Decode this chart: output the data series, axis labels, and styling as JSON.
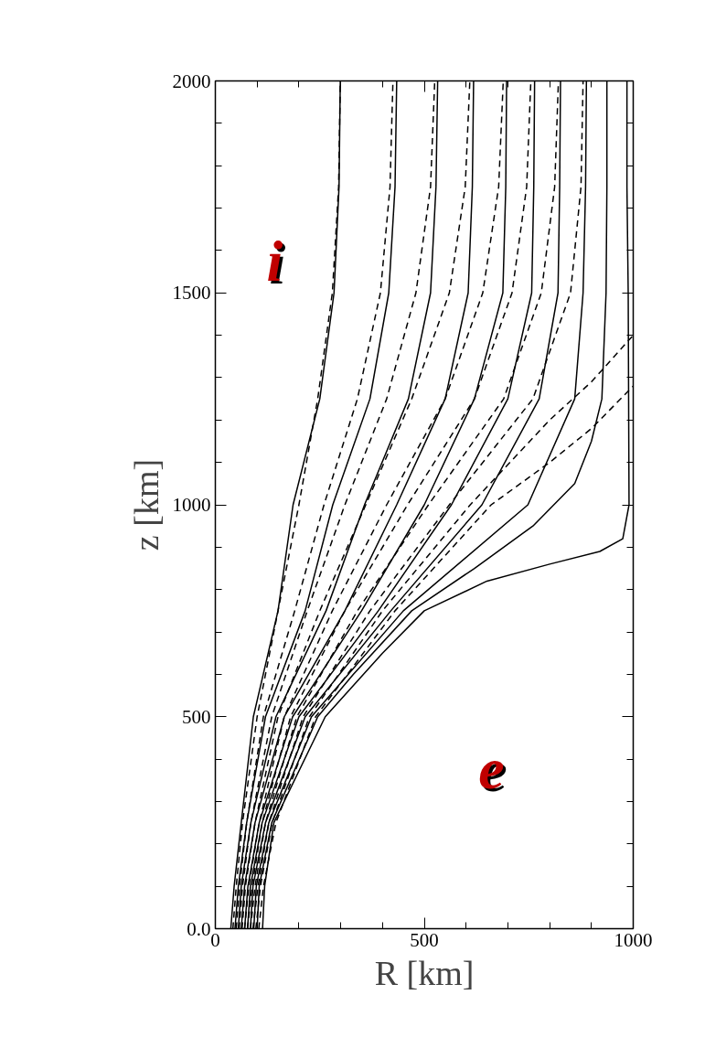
{
  "chart_data": {
    "type": "line",
    "xlabel": "R [km]",
    "ylabel": "z [km]",
    "xlim": [
      0,
      1000
    ],
    "ylim": [
      0,
      2000
    ],
    "xticks": [
      0,
      {
        "value": 100,
        "label": null
      },
      {
        "value": 200,
        "label": null
      },
      {
        "value": 300,
        "label": null
      },
      {
        "value": 400,
        "label": null
      },
      500,
      {
        "value": 600,
        "label": null
      },
      {
        "value": 700,
        "label": null
      },
      {
        "value": 800,
        "label": null
      },
      {
        "value": 900,
        "label": null
      },
      1000
    ],
    "yticks": [
      {
        "value": 0,
        "label": "0.0"
      },
      {
        "value": 100,
        "label": null
      },
      {
        "value": 200,
        "label": null
      },
      {
        "value": 300,
        "label": null
      },
      {
        "value": 400,
        "label": null
      },
      500,
      {
        "value": 600,
        "label": null
      },
      {
        "value": 700,
        "label": null
      },
      {
        "value": 800,
        "label": null
      },
      {
        "value": 900,
        "label": null
      },
      1000,
      {
        "value": 1100,
        "label": null
      },
      {
        "value": 1200,
        "label": null
      },
      {
        "value": 1300,
        "label": null
      },
      {
        "value": 1400,
        "label": null
      },
      1500,
      {
        "value": 1600,
        "label": null
      },
      {
        "value": 1700,
        "label": null
      },
      {
        "value": 1800,
        "label": null
      },
      {
        "value": 1900,
        "label": null
      },
      2000
    ],
    "annotations": [
      "i",
      "e"
    ],
    "series": [
      {
        "color": "#000000",
        "line_style": "solid",
        "x": [
          37,
          45,
          62,
          91,
          150,
          186,
          250,
          284,
          296,
          299
        ],
        "values": [
          0,
          100,
          250,
          500,
          750,
          1000,
          1250,
          1500,
          1750,
          2000
        ]
      },
      {
        "color": "#000000",
        "line_style": "solid",
        "x": [
          47,
          55,
          75,
          120,
          215,
          281,
          370,
          415,
          430,
          434
        ],
        "values": [
          0,
          100,
          250,
          500,
          750,
          1000,
          1250,
          1500,
          1750,
          2000
        ]
      },
      {
        "color": "#000000",
        "line_style": "solid",
        "x": [
          55,
          62,
          85,
          145,
          265,
          357,
          462,
          515,
          528,
          532
        ],
        "values": [
          0,
          100,
          250,
          500,
          750,
          1000,
          1250,
          1500,
          1750,
          2000
        ]
      },
      {
        "color": "#000000",
        "line_style": "solid",
        "x": [
          62,
          70,
          95,
          165,
          310,
          434,
          550,
          605,
          615,
          618
        ],
        "values": [
          0,
          100,
          250,
          500,
          750,
          1000,
          1250,
          1500,
          1750,
          2000
        ]
      },
      {
        "color": "#000000",
        "line_style": "solid",
        "x": [
          70,
          78,
          105,
          185,
          350,
          500,
          620,
          688,
          695,
          697
        ],
        "values": [
          0,
          100,
          250,
          500,
          750,
          1000,
          1250,
          1500,
          1750,
          2000
        ]
      },
      {
        "color": "#000000",
        "line_style": "solid",
        "x": [
          77,
          84,
          112,
          200,
          390,
          565,
          700,
          757,
          762,
          764
        ],
        "values": [
          0,
          100,
          250,
          500,
          750,
          1000,
          1250,
          1500,
          1750,
          2000
        ]
      },
      {
        "color": "#000000",
        "line_style": "solid",
        "x": [
          84,
          90,
          120,
          215,
          420,
          638,
          775,
          820,
          824,
          826
        ],
        "values": [
          0,
          100,
          250,
          500,
          750,
          1000,
          1250,
          1500,
          1750,
          2000
        ]
      },
      {
        "color": "#000000",
        "line_style": "solid",
        "x": [
          92,
          98,
          128,
          230,
          450,
          748,
          860,
          880,
          886,
          888
        ],
        "values": [
          0,
          100,
          250,
          500,
          750,
          1000,
          1250,
          1500,
          1750,
          2000
        ]
      },
      {
        "color": "#000000",
        "line_style": "solid",
        "x": [
          100,
          105,
          135,
          245,
          330,
          470,
          620,
          760,
          860,
          900,
          925,
          935,
          937,
          937
        ],
        "values": [
          0,
          100,
          250,
          500,
          600,
          750,
          850,
          950,
          1050,
          1150,
          1250,
          1500,
          1750,
          2000
        ]
      },
      {
        "color": "#000000",
        "line_style": "solid",
        "x": [
          113,
          118,
          140,
          263,
          400,
          500,
          650,
          800,
          920,
          975,
          990,
          988,
          985,
          985
        ],
        "values": [
          0,
          100,
          250,
          500,
          650,
          750,
          820,
          860,
          890,
          920,
          1000,
          1500,
          1750,
          2000
        ]
      },
      {
        "color": "#000000",
        "line_style": "dashed",
        "x": [
          42,
          50,
          65,
          100,
          150,
          200,
          245,
          280,
          295,
          299
        ],
        "values": [
          0,
          100,
          250,
          500,
          750,
          1000,
          1250,
          1500,
          1750,
          2000
        ]
      },
      {
        "color": "#000000",
        "line_style": "dashed",
        "x": [
          50,
          58,
          75,
          115,
          190,
          260,
          340,
          395,
          418,
          425
        ],
        "values": [
          0,
          100,
          250,
          500,
          750,
          1000,
          1250,
          1500,
          1750,
          2000
        ]
      },
      {
        "color": "#000000",
        "line_style": "dashed",
        "x": [
          57,
          65,
          85,
          135,
          220,
          310,
          410,
          480,
          515,
          525
        ],
        "values": [
          0,
          100,
          250,
          500,
          750,
          1000,
          1250,
          1500,
          1750,
          2000
        ]
      },
      {
        "color": "#000000",
        "line_style": "dashed",
        "x": [
          64,
          72,
          95,
          150,
          250,
          360,
          470,
          560,
          598,
          609
        ],
        "values": [
          0,
          100,
          250,
          500,
          750,
          1000,
          1250,
          1500,
          1750,
          2000
        ]
      },
      {
        "color": "#000000",
        "line_style": "dashed",
        "x": [
          70,
          80,
          105,
          165,
          280,
          410,
          550,
          640,
          678,
          689
        ],
        "values": [
          0,
          100,
          250,
          500,
          750,
          1000,
          1250,
          1500,
          1750,
          2000
        ]
      },
      {
        "color": "#000000",
        "line_style": "dashed",
        "x": [
          77,
          88,
          112,
          180,
          310,
          460,
          620,
          710,
          745,
          755
        ],
        "values": [
          0,
          100,
          250,
          500,
          750,
          1000,
          1250,
          1500,
          1750,
          2000
        ]
      },
      {
        "color": "#000000",
        "line_style": "dashed",
        "x": [
          84,
          95,
          120,
          195,
          340,
          510,
          690,
          780,
          812,
          821
        ],
        "values": [
          0,
          100,
          250,
          500,
          750,
          1000,
          1250,
          1500,
          1750,
          2000
        ]
      },
      {
        "color": "#000000",
        "line_style": "dashed",
        "x": [
          90,
          102,
          128,
          210,
          370,
          560,
          760,
          850,
          875,
          880
        ],
        "values": [
          0,
          100,
          250,
          500,
          750,
          1000,
          1250,
          1500,
          1750,
          2000
        ]
      },
      {
        "color": "#000000",
        "line_style": "dashed",
        "x": [
          97,
          108,
          136,
          225,
          400,
          610,
          800,
          900,
          1000
        ],
        "values": [
          0,
          100,
          250,
          500,
          750,
          1000,
          1200,
          1290,
          1400
        ]
      },
      {
        "color": "#000000",
        "line_style": "dashed",
        "x": [
          104,
          115,
          145,
          240,
          430,
          660,
          800,
          900,
          1000
        ],
        "values": [
          0,
          100,
          250,
          500,
          750,
          1000,
          1100,
          1180,
          1280
        ]
      }
    ]
  }
}
